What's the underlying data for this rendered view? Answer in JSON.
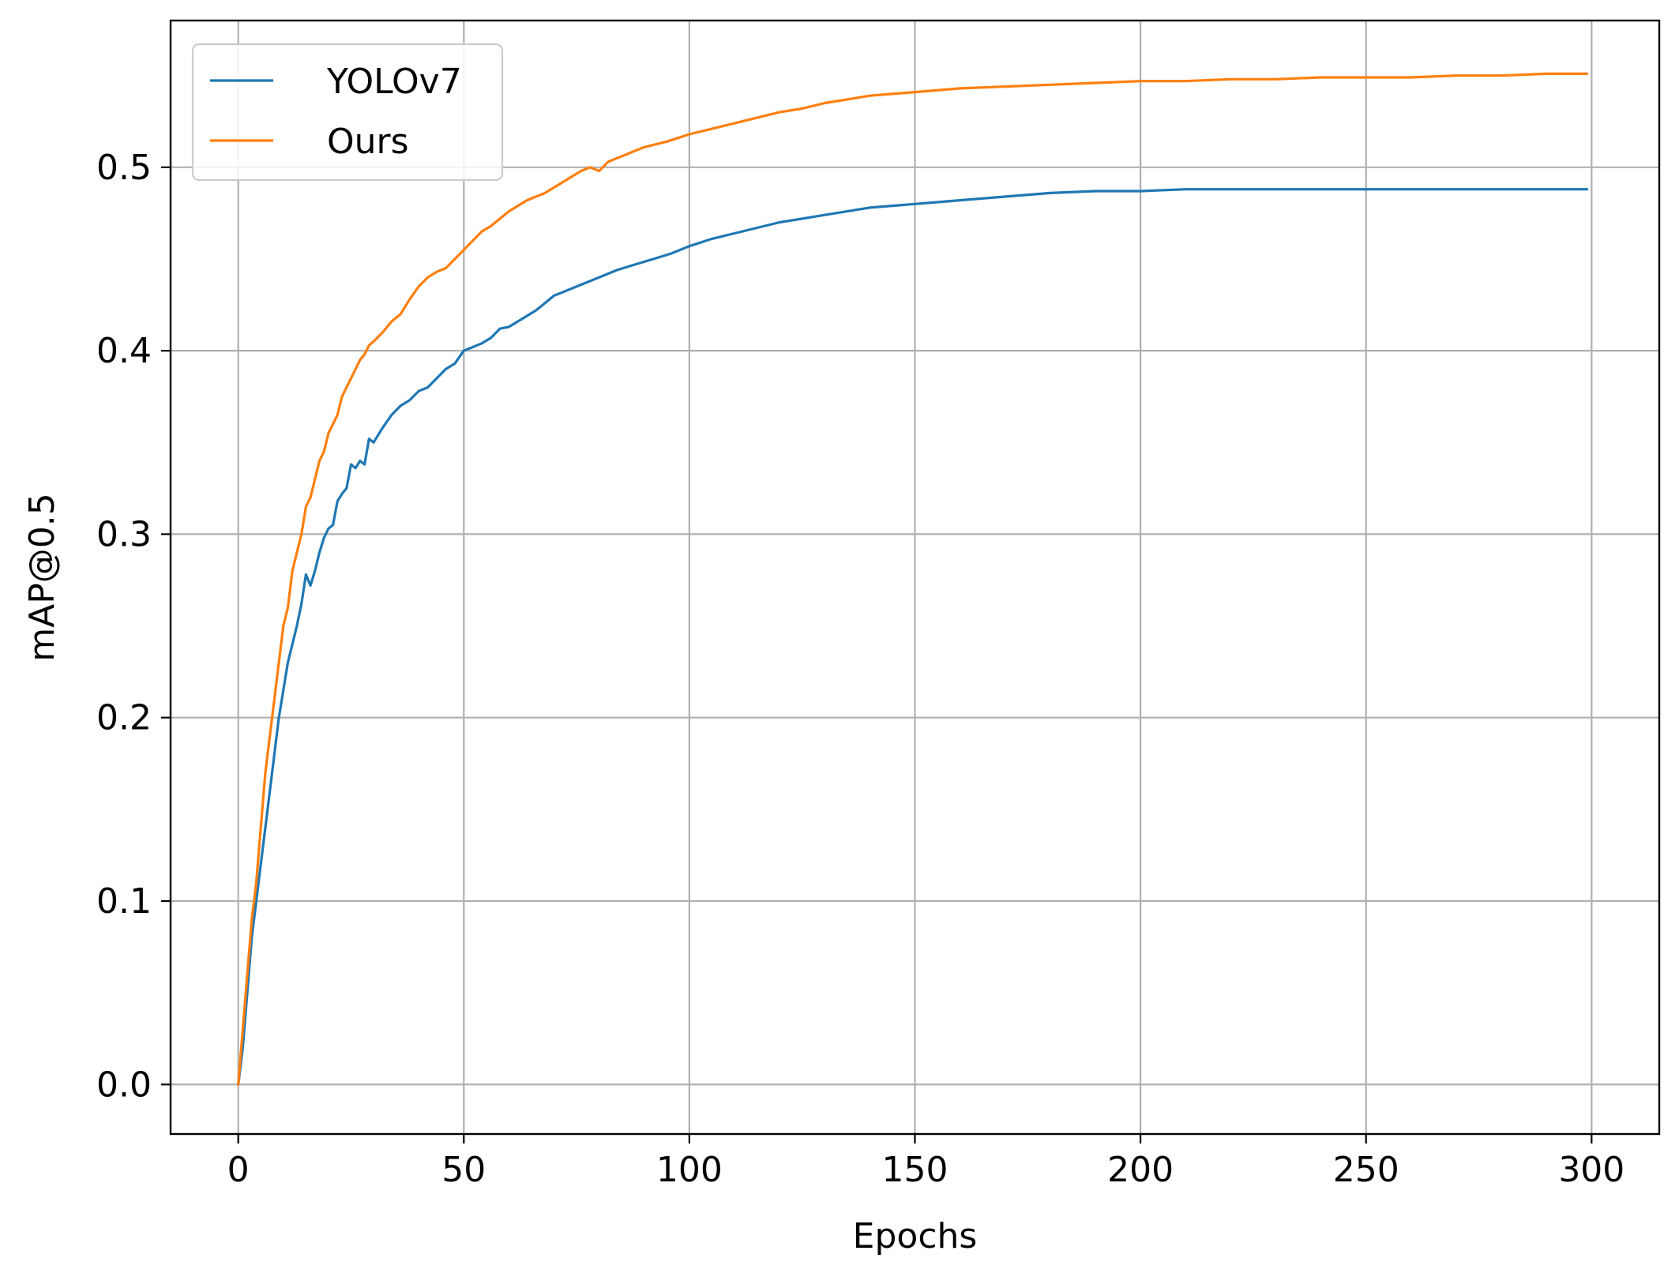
{
  "chart_data": {
    "type": "line",
    "title": "",
    "xlabel": "Epochs",
    "ylabel": "mAP@0.5",
    "xlim": [
      -15,
      315
    ],
    "ylim": [
      -0.027,
      0.58
    ],
    "xticks": [
      0,
      50,
      100,
      150,
      200,
      250,
      300
    ],
    "xtick_labels": [
      "0",
      "50",
      "100",
      "150",
      "200",
      "250",
      "300"
    ],
    "yticks": [
      0.0,
      0.1,
      0.2,
      0.3,
      0.4,
      0.5
    ],
    "ytick_labels": [
      "0.0",
      "0.1",
      "0.2",
      "0.3",
      "0.4",
      "0.5"
    ],
    "grid": true,
    "legend_position": "top-left",
    "series": [
      {
        "name": "YOLOv7",
        "color": "#1f77b4",
        "points": [
          [
            0,
            0.0
          ],
          [
            1,
            0.02
          ],
          [
            2,
            0.05
          ],
          [
            3,
            0.08
          ],
          [
            4,
            0.1
          ],
          [
            5,
            0.12
          ],
          [
            6,
            0.14
          ],
          [
            7,
            0.16
          ],
          [
            8,
            0.18
          ],
          [
            9,
            0.2
          ],
          [
            10,
            0.215
          ],
          [
            11,
            0.23
          ],
          [
            12,
            0.24
          ],
          [
            13,
            0.25
          ],
          [
            14,
            0.262
          ],
          [
            15,
            0.278
          ],
          [
            16,
            0.272
          ],
          [
            17,
            0.28
          ],
          [
            18,
            0.29
          ],
          [
            19,
            0.298
          ],
          [
            20,
            0.303
          ],
          [
            21,
            0.305
          ],
          [
            22,
            0.318
          ],
          [
            23,
            0.322
          ],
          [
            24,
            0.325
          ],
          [
            25,
            0.338
          ],
          [
            26,
            0.336
          ],
          [
            27,
            0.34
          ],
          [
            28,
            0.338
          ],
          [
            29,
            0.352
          ],
          [
            30,
            0.35
          ],
          [
            32,
            0.358
          ],
          [
            34,
            0.365
          ],
          [
            36,
            0.37
          ],
          [
            38,
            0.373
          ],
          [
            40,
            0.378
          ],
          [
            42,
            0.38
          ],
          [
            44,
            0.385
          ],
          [
            46,
            0.39
          ],
          [
            48,
            0.393
          ],
          [
            50,
            0.4
          ],
          [
            52,
            0.402
          ],
          [
            54,
            0.404
          ],
          [
            56,
            0.407
          ],
          [
            58,
            0.412
          ],
          [
            60,
            0.413
          ],
          [
            62,
            0.416
          ],
          [
            64,
            0.419
          ],
          [
            66,
            0.422
          ],
          [
            68,
            0.426
          ],
          [
            70,
            0.43
          ],
          [
            72,
            0.432
          ],
          [
            74,
            0.434
          ],
          [
            76,
            0.436
          ],
          [
            78,
            0.438
          ],
          [
            80,
            0.44
          ],
          [
            84,
            0.444
          ],
          [
            88,
            0.447
          ],
          [
            92,
            0.45
          ],
          [
            96,
            0.453
          ],
          [
            100,
            0.457
          ],
          [
            105,
            0.461
          ],
          [
            110,
            0.464
          ],
          [
            115,
            0.467
          ],
          [
            120,
            0.47
          ],
          [
            125,
            0.472
          ],
          [
            130,
            0.474
          ],
          [
            135,
            0.476
          ],
          [
            140,
            0.478
          ],
          [
            145,
            0.479
          ],
          [
            150,
            0.48
          ],
          [
            160,
            0.482
          ],
          [
            170,
            0.484
          ],
          [
            180,
            0.486
          ],
          [
            190,
            0.487
          ],
          [
            200,
            0.487
          ],
          [
            210,
            0.488
          ],
          [
            220,
            0.488
          ],
          [
            230,
            0.488
          ],
          [
            240,
            0.488
          ],
          [
            250,
            0.488
          ],
          [
            260,
            0.488
          ],
          [
            270,
            0.488
          ],
          [
            280,
            0.488
          ],
          [
            290,
            0.488
          ],
          [
            299,
            0.488
          ]
        ]
      },
      {
        "name": "Ours",
        "color": "#ff7f0e",
        "points": [
          [
            0,
            0.0
          ],
          [
            1,
            0.03
          ],
          [
            2,
            0.06
          ],
          [
            3,
            0.09
          ],
          [
            4,
            0.11
          ],
          [
            5,
            0.14
          ],
          [
            6,
            0.17
          ],
          [
            7,
            0.19
          ],
          [
            8,
            0.21
          ],
          [
            9,
            0.23
          ],
          [
            10,
            0.25
          ],
          [
            11,
            0.26
          ],
          [
            12,
            0.28
          ],
          [
            13,
            0.29
          ],
          [
            14,
            0.3
          ],
          [
            15,
            0.315
          ],
          [
            16,
            0.32
          ],
          [
            17,
            0.33
          ],
          [
            18,
            0.34
          ],
          [
            19,
            0.345
          ],
          [
            20,
            0.355
          ],
          [
            21,
            0.36
          ],
          [
            22,
            0.365
          ],
          [
            23,
            0.375
          ],
          [
            24,
            0.38
          ],
          [
            25,
            0.385
          ],
          [
            26,
            0.39
          ],
          [
            27,
            0.395
          ],
          [
            28,
            0.398
          ],
          [
            29,
            0.403
          ],
          [
            30,
            0.405
          ],
          [
            32,
            0.41
          ],
          [
            34,
            0.416
          ],
          [
            36,
            0.42
          ],
          [
            38,
            0.428
          ],
          [
            40,
            0.435
          ],
          [
            42,
            0.44
          ],
          [
            44,
            0.443
          ],
          [
            46,
            0.445
          ],
          [
            48,
            0.45
          ],
          [
            50,
            0.455
          ],
          [
            52,
            0.46
          ],
          [
            54,
            0.465
          ],
          [
            56,
            0.468
          ],
          [
            58,
            0.472
          ],
          [
            60,
            0.476
          ],
          [
            62,
            0.479
          ],
          [
            64,
            0.482
          ],
          [
            66,
            0.484
          ],
          [
            68,
            0.486
          ],
          [
            70,
            0.489
          ],
          [
            72,
            0.492
          ],
          [
            74,
            0.495
          ],
          [
            76,
            0.498
          ],
          [
            78,
            0.5
          ],
          [
            80,
            0.498
          ],
          [
            82,
            0.503
          ],
          [
            84,
            0.505
          ],
          [
            86,
            0.507
          ],
          [
            88,
            0.509
          ],
          [
            90,
            0.511
          ],
          [
            95,
            0.514
          ],
          [
            100,
            0.518
          ],
          [
            105,
            0.521
          ],
          [
            110,
            0.524
          ],
          [
            115,
            0.527
          ],
          [
            120,
            0.53
          ],
          [
            125,
            0.532
          ],
          [
            130,
            0.535
          ],
          [
            135,
            0.537
          ],
          [
            140,
            0.539
          ],
          [
            145,
            0.54
          ],
          [
            150,
            0.541
          ],
          [
            160,
            0.543
          ],
          [
            170,
            0.544
          ],
          [
            180,
            0.545
          ],
          [
            190,
            0.546
          ],
          [
            200,
            0.547
          ],
          [
            210,
            0.547
          ],
          [
            220,
            0.548
          ],
          [
            230,
            0.548
          ],
          [
            240,
            0.549
          ],
          [
            250,
            0.549
          ],
          [
            260,
            0.549
          ],
          [
            270,
            0.55
          ],
          [
            280,
            0.55
          ],
          [
            290,
            0.551
          ],
          [
            299,
            0.551
          ]
        ]
      }
    ]
  }
}
